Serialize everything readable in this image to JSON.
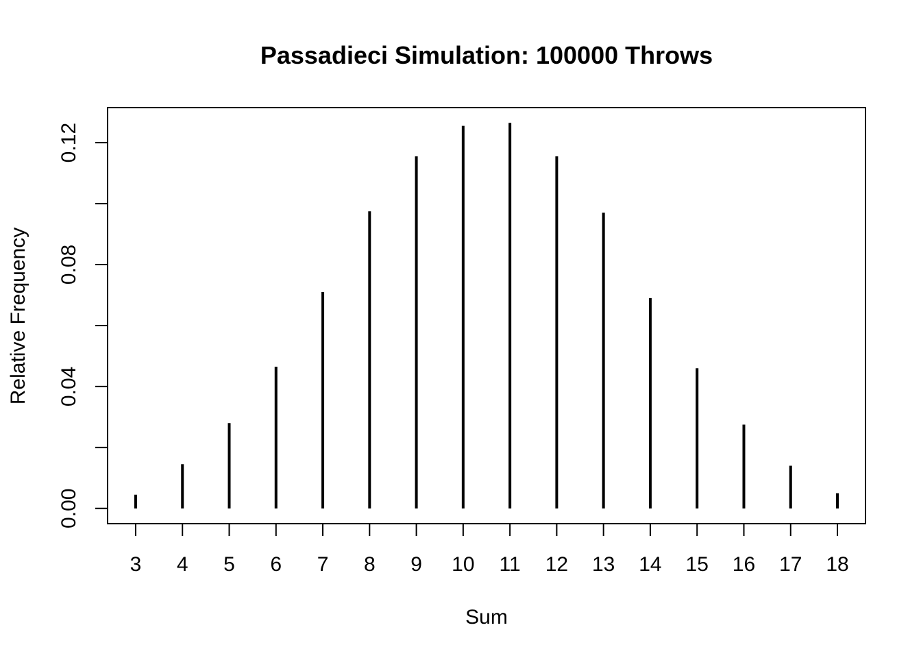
{
  "chart_data": {
    "type": "bar",
    "title": "Passadieci Simulation: 100000 Throws",
    "xlabel": "Sum",
    "ylabel": "Relative Frequency",
    "x": [
      3,
      4,
      5,
      6,
      7,
      8,
      9,
      10,
      11,
      12,
      13,
      14,
      15,
      16,
      17,
      18
    ],
    "x_tick_labels": [
      "3",
      "4",
      "5",
      "6",
      "7",
      "8",
      "9",
      "10",
      "11",
      "12",
      "13",
      "14",
      "15",
      "16",
      "17",
      "18"
    ],
    "values": [
      0.0045,
      0.0145,
      0.028,
      0.0465,
      0.071,
      0.0975,
      0.1155,
      0.1255,
      0.1265,
      0.1155,
      0.097,
      0.069,
      0.046,
      0.0275,
      0.014,
      0.005
    ],
    "y_ticks": [
      0,
      0.02,
      0.04,
      0.06,
      0.08,
      0.1,
      0.12
    ],
    "y_tick_labels": [
      "0.00",
      "",
      "0.04",
      "",
      "0.08",
      "",
      "0.12"
    ],
    "xlim": [
      2.4,
      18.6
    ],
    "ylim": [
      -0.005,
      0.1315
    ],
    "grid": false,
    "legend": "none",
    "bar_color": "#000000"
  }
}
